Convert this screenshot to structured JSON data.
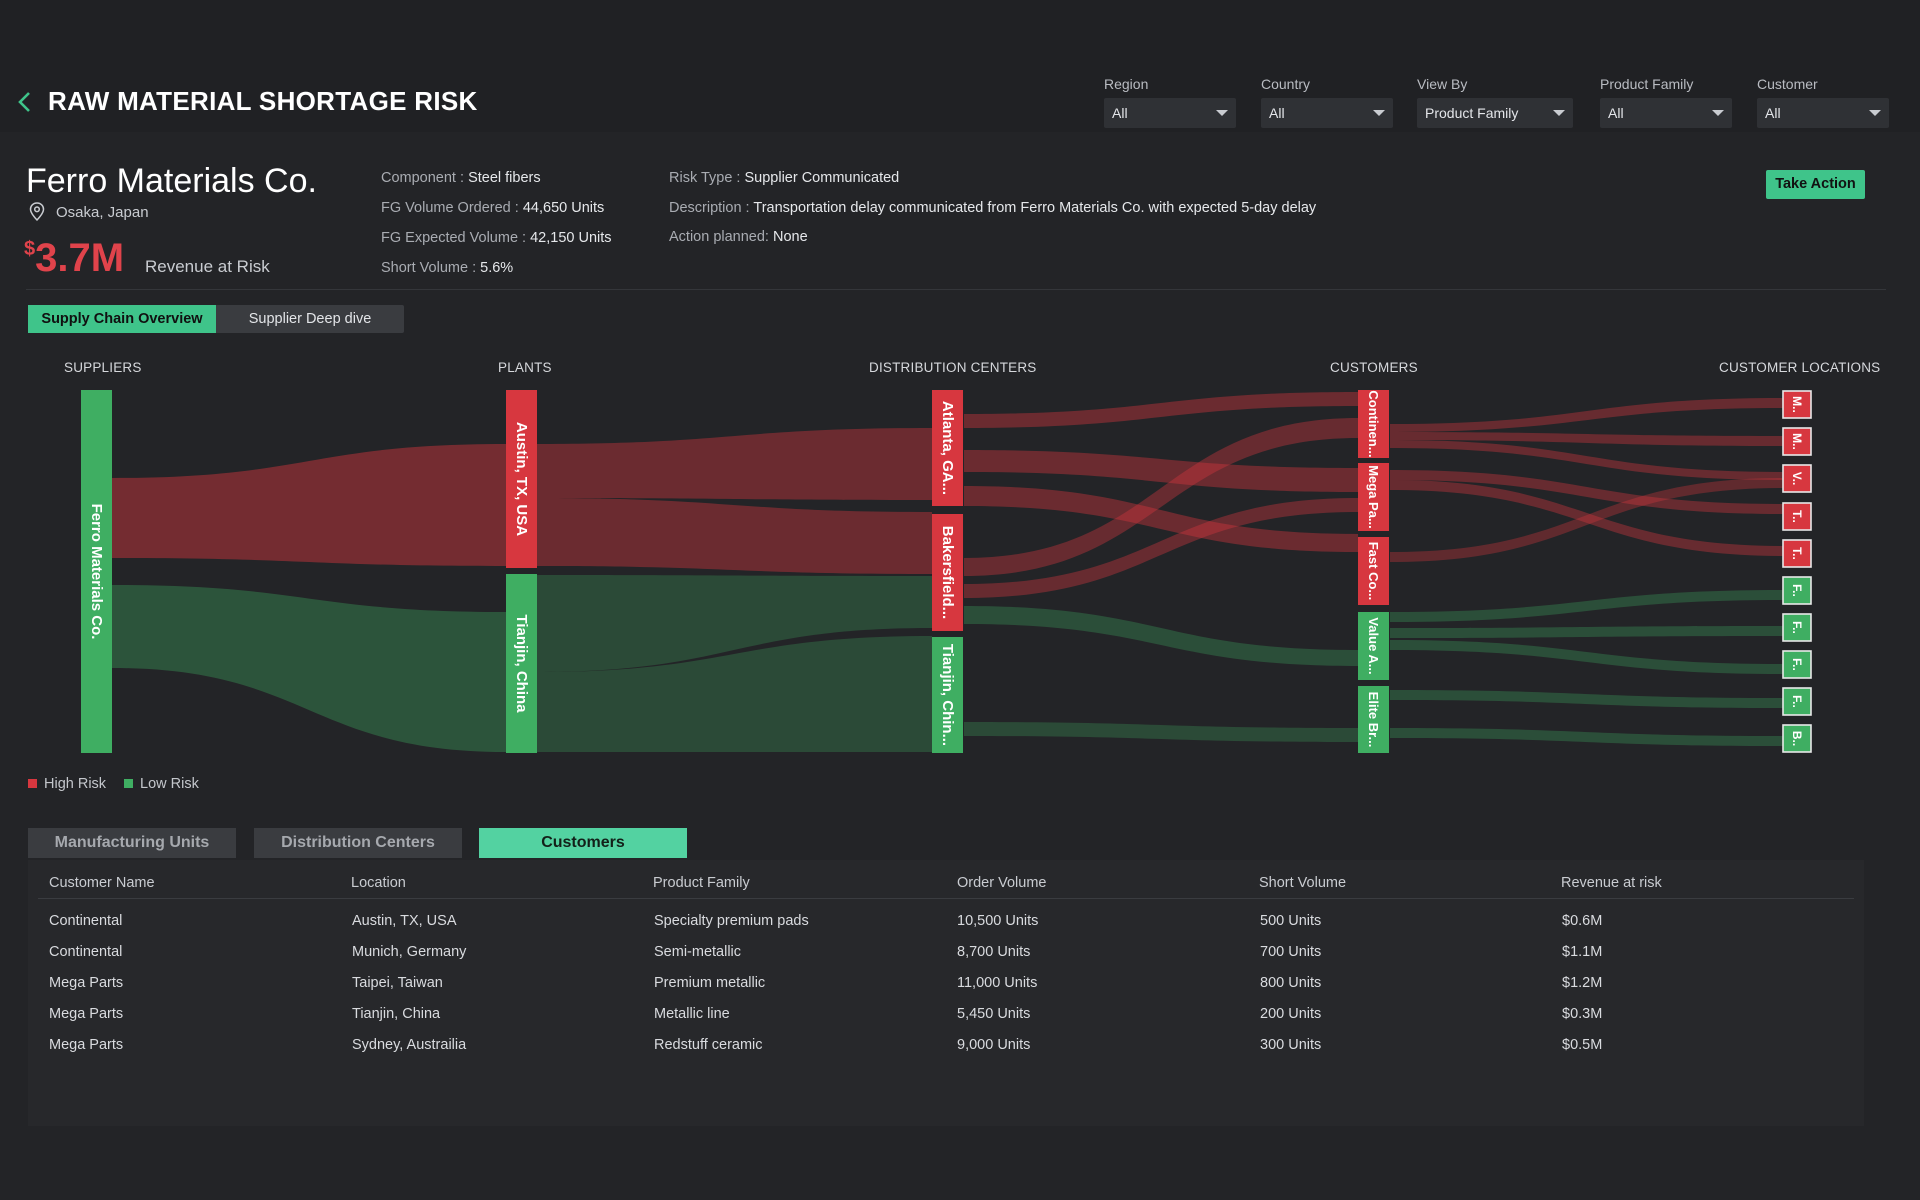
{
  "header": {
    "title": "RAW MATERIAL SHORTAGE RISK",
    "filters": [
      {
        "label": "Region",
        "value": "All"
      },
      {
        "label": "Country",
        "value": "All"
      },
      {
        "label": "View By",
        "value": "Product Family"
      },
      {
        "label": "Product Family",
        "value": "All"
      },
      {
        "label": "Customer",
        "value": "All"
      }
    ]
  },
  "supplier": {
    "name": "Ferro Materials Co.",
    "location": "Osaka, Japan",
    "revenue_currency": "$",
    "revenue_value": "3.7M",
    "revenue_label": "Revenue at Risk",
    "component_label": "Component :",
    "component_value": "Steel fibers",
    "fg_ordered_label": "FG Volume Ordered :",
    "fg_ordered_value": "44,650 Units",
    "fg_expected_label": "FG Expected Volume :",
    "fg_expected_value": "42,150 Units",
    "short_label": "Short Volume :",
    "short_value": "5.6%",
    "risk_type_label": "Risk Type :",
    "risk_type_value": "Supplier Communicated",
    "description_label": "Description :",
    "description_value": "Transportation delay communicated from Ferro Materials Co. with expected 5-day delay",
    "action_label": "Action planned:",
    "action_value": "None",
    "take_action": "Take Action"
  },
  "view_tabs": [
    "Supply Chain Overview",
    "Supplier Deep dive"
  ],
  "sankey": {
    "columns": [
      "SUPPLIERS",
      "PLANTS",
      "DISTRIBUTION CENTERS",
      "CUSTOMERS",
      "CUSTOMER LOCATIONS"
    ],
    "nodes": {
      "supplier": "Ferro Materials Co.",
      "plant_1": "Austin, TX, USA",
      "plant_2": "Tianjin, China",
      "dc_1": "Atlanta, GA...",
      "dc_2": "Bakersfield...",
      "dc_3": "Tianjin, Chin...",
      "cust_1": "Continen...",
      "cust_2": "Mega Pa...",
      "cust_3": "Fast Co...",
      "cust_4": "Value A...",
      "cust_5": "Elite Br...",
      "loc_1": "M..",
      "loc_2": "M..",
      "loc_3": "V..",
      "loc_4": "T..",
      "loc_5": "T..",
      "loc_6": "F..",
      "loc_7": "F..",
      "loc_8": "F..",
      "loc_9": "F..",
      "loc_10": "B.."
    },
    "colors": {
      "high_risk": "#d7373f",
      "low_risk": "#3fae62"
    }
  },
  "legend": {
    "high": "High Risk",
    "low": "Low Risk"
  },
  "detail_tabs": [
    "Manufacturing Units",
    "Distribution Centers",
    "Customers"
  ],
  "table": {
    "headers": [
      "Customer Name",
      "Location",
      "Product Family",
      "Order Volume",
      "Short Volume",
      "Revenue at risk"
    ],
    "rows": [
      [
        "Continental",
        "Austin, TX, USA",
        "Specialty premium pads",
        "10,500 Units",
        "500 Units",
        "$0.6M"
      ],
      [
        "Continental",
        "Munich, Germany",
        "Semi-metallic",
        "8,700 Units",
        "700 Units",
        "$1.1M"
      ],
      [
        "Mega Parts",
        "Taipei, Taiwan",
        "Premium metallic",
        "11,000 Units",
        "800 Units",
        "$1.2M"
      ],
      [
        "Mega Parts",
        "Tianjin, China",
        "Metallic line",
        "5,450 Units",
        "200 Units",
        "$0.3M"
      ],
      [
        "Mega Parts",
        "Sydney, Austrailia",
        "Redstuff ceramic",
        "9,000 Units",
        "300 Units",
        "$0.5M"
      ]
    ]
  }
}
